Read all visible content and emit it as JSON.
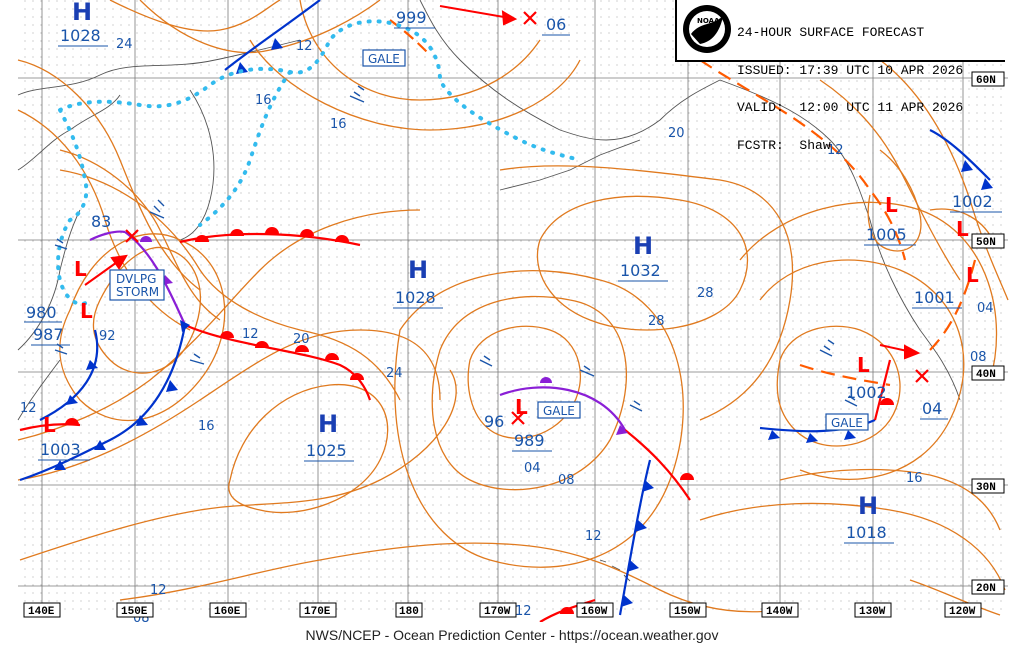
{
  "header": {
    "title": "24-HOUR SURFACE FORECAST",
    "issued": "ISSUED: 17:39 UTC 10 APR 2026",
    "valid": "VALID:  12:00 UTC 11 APR 2026",
    "forecaster": "FCSTR:  Shaw",
    "logo_text": "NOAA"
  },
  "footer": {
    "text": "NWS/NCEP - Ocean Prediction Center - https://ocean.weather.gov"
  },
  "lon_labels": [
    "140E",
    "150E",
    "160E",
    "170E",
    "180",
    "170W",
    "160W",
    "150W",
    "140W",
    "130W",
    "120W"
  ],
  "lat_labels": [
    "60N",
    "50N",
    "40N",
    "30N",
    "20N"
  ],
  "pressure_centers": [
    {
      "type": "H",
      "value": "1028",
      "id": "nw-high"
    },
    {
      "type": "H",
      "value": "1028",
      "id": "central-high"
    },
    {
      "type": "H",
      "value": "1032",
      "id": "northeast-pacific-high"
    },
    {
      "type": "H",
      "value": "1025",
      "id": "south-central-high"
    },
    {
      "type": "H",
      "value": "1018",
      "id": "southeast-high"
    },
    {
      "type": "L",
      "value": "999",
      "id": "bering-low"
    },
    {
      "type": "L",
      "value": "06",
      "id": "bering-low-2"
    },
    {
      "type": "L",
      "value": "83",
      "id": "developing-storm-low"
    },
    {
      "type": "L",
      "value": "980",
      "id": "kamchatka-low"
    },
    {
      "type": "L",
      "value": "987",
      "id": "kuril-low"
    },
    {
      "type": "L",
      "value": "1003",
      "id": "japan-low"
    },
    {
      "type": "L",
      "value": "96",
      "id": "central-low-forecast"
    },
    {
      "type": "L",
      "value": "989",
      "id": "central-low"
    },
    {
      "type": "L",
      "value": "1005",
      "id": "bc-low"
    },
    {
      "type": "L",
      "value": "1002",
      "id": "washington-low"
    },
    {
      "type": "L",
      "value": "1001",
      "id": "oregon-low"
    },
    {
      "type": "L",
      "value": "1002",
      "id": "california-offshore-low"
    },
    {
      "type": "L",
      "value": "04",
      "id": "california-low"
    }
  ],
  "warnings": [
    {
      "text": "GALE",
      "id": "gale-bering"
    },
    {
      "text": "DVLPG\nSTORM",
      "id": "dvlpg-storm"
    },
    {
      "text": "GALE",
      "id": "gale-central"
    },
    {
      "text": "GALE",
      "id": "gale-east"
    }
  ],
  "isobar_labels": [
    "24",
    "12",
    "16",
    "16",
    "20",
    "12",
    "16",
    "20",
    "24",
    "28",
    "28",
    "12",
    "04",
    "04",
    "08",
    "08",
    "12",
    "16",
    "12",
    "12",
    "12",
    "08",
    "92"
  ],
  "colors": {
    "isobar": "#e07a1f",
    "warm_front": "#ff0000",
    "cold_front": "#0033cc",
    "occluded_front": "#8a1fd6",
    "ice_edge": "#33bbee",
    "text_blue": "#1a55aa",
    "grid": "#7a7a7a"
  }
}
